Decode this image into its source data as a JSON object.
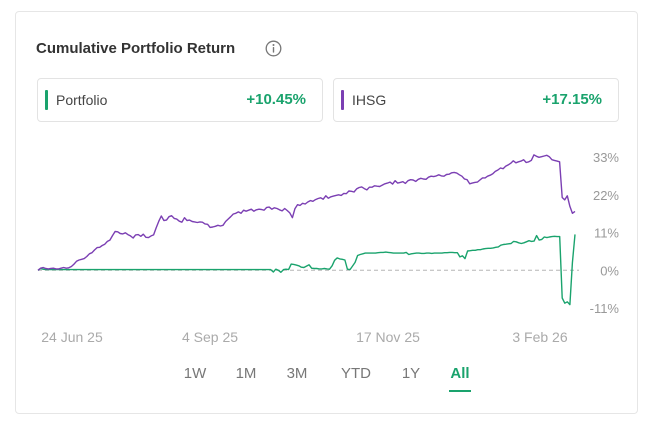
{
  "title": "Cumulative Portfolio Return",
  "legend": [
    {
      "name": "Portfolio",
      "value": "+10.45%",
      "bar_color": "#1aa36d",
      "value_color": "#1aa36d"
    },
    {
      "name": "IHSG",
      "value": "+17.15%",
      "bar_color": "#7b3fb3",
      "value_color": "#1aa36d"
    }
  ],
  "tabs": [
    {
      "label": "1W",
      "active": false
    },
    {
      "label": "1M",
      "active": false
    },
    {
      "label": "3M",
      "active": false
    },
    {
      "label": "YTD",
      "active": false
    },
    {
      "label": "1Y",
      "active": false
    },
    {
      "label": "All",
      "active": true
    }
  ],
  "colors": {
    "portfolio": "#1aa36d",
    "ihsg": "#7b3fb3",
    "accent": "#1aa36d",
    "tick": "#999999",
    "baseline": "#b5b5b5"
  },
  "icons": {
    "info": "info-circle-icon"
  },
  "chart_data": {
    "type": "line",
    "title": "Cumulative Portfolio Return",
    "x_ticks": [
      "24 Jun 25",
      "4 Sep 25",
      "17 Nov 25",
      "3 Feb 26"
    ],
    "y_ticks": [
      "33%",
      "22%",
      "11%",
      "0%",
      "-11%"
    ],
    "y_tick_values": [
      33,
      22,
      11,
      0,
      -11
    ],
    "ylim": [
      -11,
      33
    ],
    "baseline": 0,
    "grid": false,
    "legend_position": "top",
    "series": [
      {
        "name": "Portfolio",
        "values": [
          0,
          0.5,
          0.3,
          0.2,
          0.2,
          0.2,
          0.2,
          0.2,
          0.2,
          0.2,
          0.2,
          0.2,
          0.2,
          0.2,
          0.2,
          0.2,
          0.2,
          0.2,
          0.2,
          0.2,
          0.2,
          0.2,
          0.2,
          0.2,
          0.2,
          0.2,
          0.2,
          0.2,
          0.2,
          0.2,
          0.2,
          0.2,
          0.2,
          0.2,
          0.2,
          0.2,
          0.2,
          0.2,
          0.2,
          0.2,
          0.2,
          0.2,
          0.2,
          0.2,
          0.2,
          0.2,
          0.2,
          0.2,
          0.2,
          0.2,
          0.2,
          0.2,
          0.2,
          0.2,
          0.2,
          0.2,
          0.2,
          0.2,
          0.2,
          0.2,
          0.2,
          0.2,
          0.2,
          0.2,
          0.2,
          0.2,
          0.2,
          0.2,
          0.2,
          0.2,
          0.2,
          0.2,
          0.2,
          0.2,
          0.2,
          0.2,
          0.2,
          0.2,
          0.2,
          0.2,
          0.2,
          0.2,
          0.2,
          0.2,
          0.2,
          0.2,
          0.2,
          0.2,
          0.2,
          0.2,
          0.2,
          0.2,
          -0.5,
          0.3,
          0,
          -0.6,
          0.2,
          0.3,
          0.2,
          1.8,
          1.7,
          1.5,
          1.3,
          0.9,
          0.8,
          1.2,
          1.6,
          0.6,
          0.5,
          0.5,
          0.4,
          0.4,
          0.5,
          0.4,
          0.3,
          1.3,
          2.9,
          3.6,
          3.3,
          3.2,
          3.0,
          0.3,
          0.2,
          1.2,
          2.3,
          4.3,
          4.6,
          4.8,
          5.0,
          5.0,
          5.0,
          5.0,
          5.0,
          5.1,
          5.2,
          5.2,
          5.3,
          5.2,
          5.1,
          5.0,
          5.0,
          5.0,
          5.0,
          5.0,
          5.2,
          4.6,
          4.8,
          4.9,
          5.0,
          5.0,
          4.9,
          4.9,
          5.0,
          5.0,
          4.9,
          5.0,
          5.0,
          5.0,
          5.0,
          5.1,
          5.1,
          5.2,
          5.2,
          5.1,
          5.1,
          3.9,
          4.2,
          3.4,
          5.6,
          5.7,
          5.8,
          5.8,
          6.0,
          6.0,
          6.2,
          6.3,
          6.4,
          6.4,
          6.5,
          6.7,
          6.8,
          7.3,
          7.5,
          7.6,
          7.7,
          7.8,
          8.4,
          8.3,
          8.0,
          7.8,
          8.0,
          8.3,
          8.6,
          8.4,
          8.5,
          10.1,
          8.8,
          9.0,
          9.7,
          9.5,
          9.7,
          9.8,
          9.9,
          9.8,
          9.8,
          -8.1,
          -9.6,
          -9.2,
          -10.0,
          2.2,
          10.45
        ]
      },
      {
        "name": "IHSG",
        "values": [
          0,
          0.6,
          0.8,
          0.5,
          0.4,
          0.5,
          0.6,
          0.4,
          0.4,
          0.6,
          0.8,
          0.6,
          0.7,
          1.1,
          1.8,
          2.6,
          3.0,
          3.2,
          3.4,
          4.0,
          4.8,
          5.1,
          5.9,
          6.6,
          6.7,
          7.2,
          7.6,
          8.4,
          8.8,
          10.1,
          11.3,
          11.2,
          10.7,
          10.6,
          10.9,
          10.4,
          10.0,
          9.4,
          10.3,
          10.4,
          9.9,
          10.5,
          9.6,
          9.5,
          10.0,
          10.3,
          12.4,
          14.3,
          15.8,
          14.5,
          14.6,
          15.6,
          15.9,
          15.1,
          14.9,
          14.3,
          14.0,
          15.3,
          14.5,
          14.6,
          14.2,
          14.1,
          13.9,
          14.1,
          14.0,
          13.5,
          13.4,
          12.5,
          12.6,
          12.8,
          13.1,
          12.9,
          13.1,
          14.2,
          14.9,
          15.6,
          16.4,
          16.6,
          17.0,
          16.6,
          17.5,
          17.2,
          17.5,
          17.8,
          17.2,
          17.6,
          17.8,
          17.7,
          17.5,
          18.3,
          18.4,
          17.8,
          18.2,
          18.0,
          17.6,
          17.3,
          18.0,
          17.4,
          16.7,
          15.3,
          17.9,
          19.1,
          18.9,
          19.5,
          19.3,
          19.9,
          20.3,
          20.1,
          20.6,
          20.9,
          21.1,
          20.7,
          21.7,
          21.0,
          21.4,
          21.6,
          21.8,
          22.0,
          21.8,
          22.4,
          22.3,
          23.1,
          23.0,
          22.8,
          23.7,
          24.1,
          24.3,
          23.8,
          23.4,
          24.2,
          24.2,
          24.6,
          24.5,
          24.4,
          24.8,
          25.2,
          25.4,
          25.7,
          25.1,
          26.1,
          25.4,
          25.6,
          25.8,
          25.3,
          26.1,
          26.4,
          26.3,
          25.9,
          26.5,
          26.8,
          26.6,
          26.5,
          27.1,
          27.4,
          27.3,
          27.5,
          27.8,
          27.5,
          27.4,
          27.9,
          28.0,
          28.4,
          28.5,
          28.3,
          27.8,
          27.4,
          26.6,
          26.4,
          25.2,
          25.4,
          25.6,
          25.7,
          26.3,
          26.9,
          26.9,
          27.4,
          27.7,
          28.1,
          28.8,
          29.2,
          29.8,
          29.6,
          30.3,
          30.7,
          31.2,
          31.9,
          31.3,
          31.6,
          31.8,
          32.2,
          31.4,
          31.6,
          32.0,
          33.6,
          33.2,
          32.9,
          33.1,
          33.3,
          33.5,
          33.1,
          32.2,
          32.0,
          31.8,
          31.6,
          21.2,
          20.5,
          21.7,
          18.6,
          16.6,
          17.15
        ]
      }
    ]
  }
}
